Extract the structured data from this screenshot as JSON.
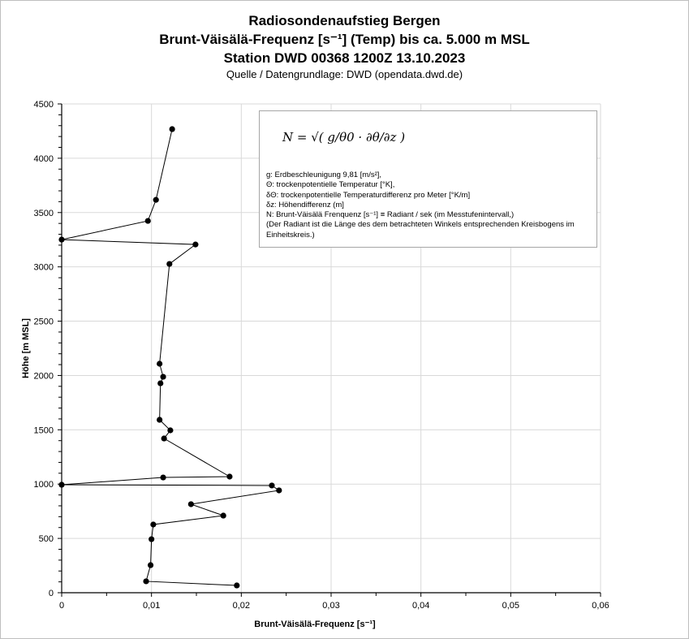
{
  "titles": {
    "line1": "Radiosondenaufstieg Bergen",
    "line2": "Brunt-Väisälä-Frequenz [s⁻¹] (Temp) bis ca. 5.000 m MSL",
    "line3": "Station DWD 00368 1200Z 13.10.2023",
    "line4": "Quelle / Datengrundlage: DWD (opendata.dwd.de)"
  },
  "legend": {
    "formula_text": "N = √( g/θ0 · ∂θ/∂z )",
    "lines": [
      "g: Erdbeschleunigung 9,81 [m/s²],",
      "Θ: trockenpotentielle Temperatur [°K],",
      "δΘ: trockenpotentielle Temperaturdifferenz pro Meter [°K/m]",
      "δz: Höhendifferenz (m]",
      "N: Brunt-Väisälä Frenquenz [s⁻¹] ≡ Radiant / sek (im Messtufenintervall,)",
      "(Der Radiant ist die Länge des dem betrachteten Winkels entsprechenden Kreisbogens im",
      "Einheitskreis.)"
    ]
  },
  "chart_data": {
    "type": "scatter",
    "title": "Radiosondenaufstieg Bergen",
    "xlabel": "Brunt-Väisälä-Frequenz [s⁻¹]",
    "ylabel": "Höhe [m MSL]",
    "xlim": [
      0,
      0.06
    ],
    "ylim": [
      0,
      4500
    ],
    "x_ticks": [
      "0",
      "0,01",
      "0,02",
      "0,03",
      "0,04",
      "0,05",
      "0,06"
    ],
    "y_ticks": [
      "0",
      "500",
      "1000",
      "1500",
      "2000",
      "2500",
      "3000",
      "3500",
      "4000",
      "4500"
    ],
    "grid": true,
    "series": [
      {
        "name": "N",
        "color": "#000000",
        "points": [
          [
            0.0195,
            67
          ],
          [
            0.0094,
            105
          ],
          [
            0.0099,
            254
          ],
          [
            0.01,
            493
          ],
          [
            0.0102,
            628
          ],
          [
            0.018,
            710
          ],
          [
            0.0144,
            815
          ],
          [
            0.0242,
            942
          ],
          [
            0.0234,
            987
          ],
          [
            0.0,
            994
          ],
          [
            0.0113,
            1061
          ],
          [
            0.0187,
            1069
          ],
          [
            0.0114,
            1420
          ],
          [
            0.0121,
            1495
          ],
          [
            0.0109,
            1592
          ],
          [
            0.011,
            1928
          ],
          [
            0.0113,
            1988
          ],
          [
            0.0109,
            2108
          ],
          [
            0.012,
            3027
          ],
          [
            0.0149,
            3206
          ],
          [
            0.0,
            3251
          ],
          [
            0.0096,
            3423
          ],
          [
            0.0105,
            3617
          ],
          [
            0.0123,
            4268
          ]
        ]
      }
    ]
  }
}
